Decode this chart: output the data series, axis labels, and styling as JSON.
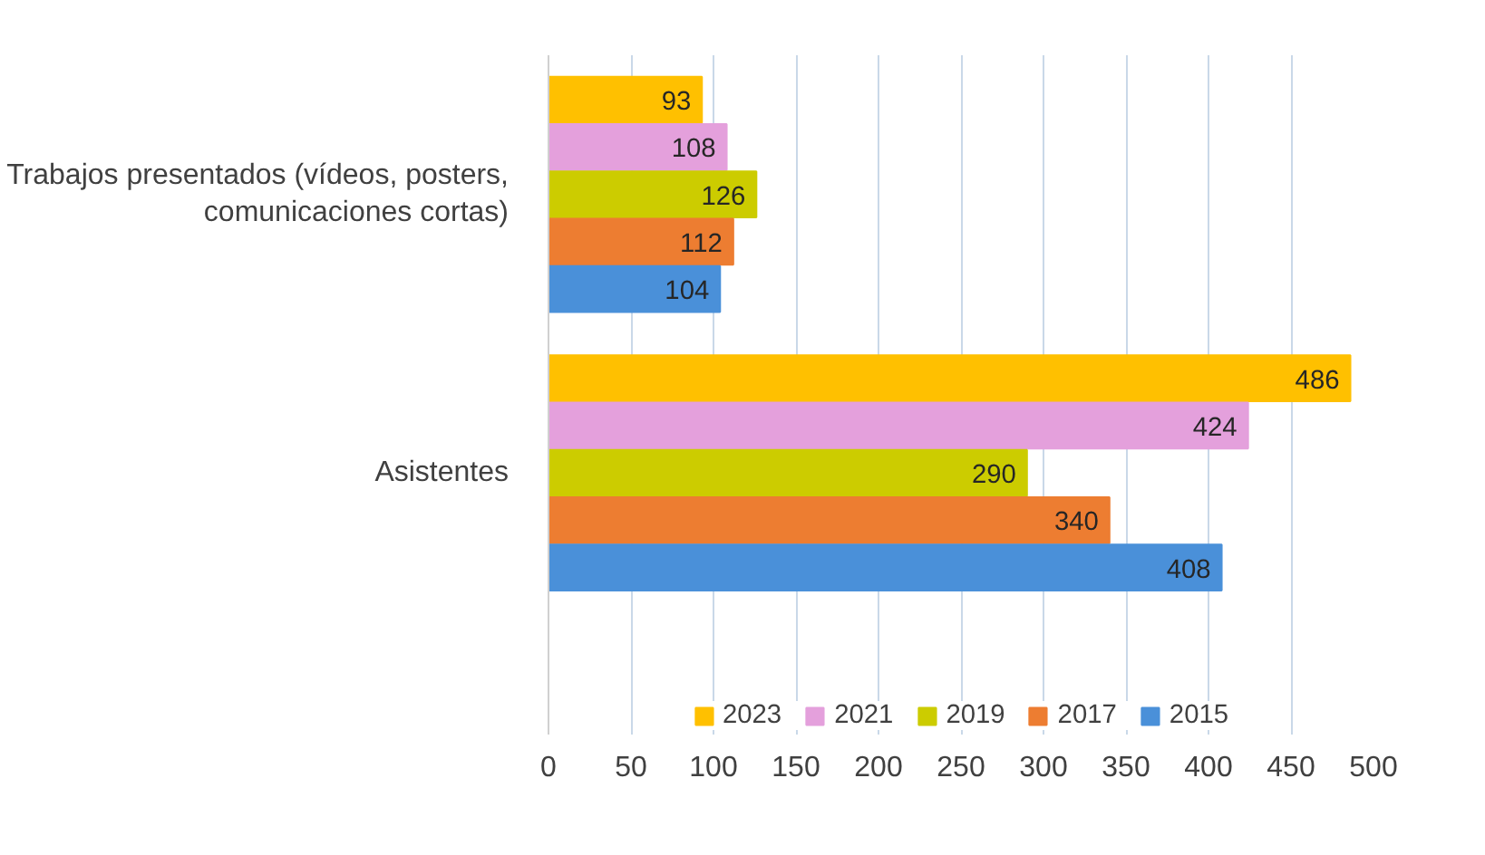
{
  "chart_data": {
    "type": "bar",
    "orientation": "horizontal",
    "categories": [
      "Trabajos presentados (vídeos, posters, comunicaciones cortas)",
      "Asistentes"
    ],
    "series": [
      {
        "name": "2023",
        "color": "#ffc000",
        "values": [
          93,
          486
        ]
      },
      {
        "name": "2021",
        "color": "#e4a0dc",
        "values": [
          108,
          424
        ]
      },
      {
        "name": "2019",
        "color": "#cccc00",
        "values": [
          126,
          290
        ]
      },
      {
        "name": "2017",
        "color": "#ed7d31",
        "values": [
          112,
          340
        ]
      },
      {
        "name": "2015",
        "color": "#4a90d9",
        "values": [
          104,
          408
        ]
      }
    ],
    "xlim": [
      0,
      500
    ],
    "xticks": [
      0,
      50,
      100,
      150,
      200,
      250,
      300,
      350,
      400,
      450,
      500
    ],
    "grid": "x",
    "legend": "bottom",
    "data_labels": true
  }
}
